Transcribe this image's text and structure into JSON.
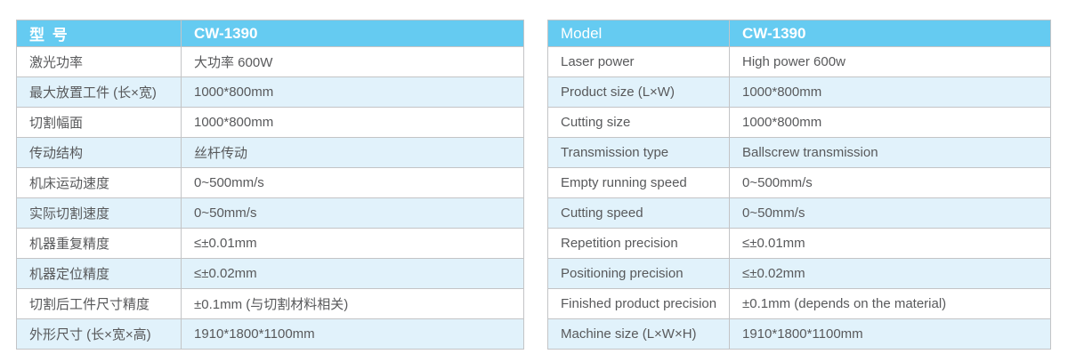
{
  "colors": {
    "header_bg": "#65cbf1",
    "header_text": "#ffffff",
    "stripe_row_bg": "#e1f2fb",
    "row_bg": "#ffffff",
    "border": "#c3c4c6",
    "body_text": "#58595b"
  },
  "tables": {
    "cn": {
      "header": {
        "label": "型 号",
        "value": "CW-1390"
      },
      "rows": [
        {
          "label": "激光功率",
          "value": "大功率 600W"
        },
        {
          "label": "最大放置工件 (长×宽)",
          "value": "1000*800mm"
        },
        {
          "label": "切割幅面",
          "value": "1000*800mm"
        },
        {
          "label": "传动结构",
          "value": "丝杆传动"
        },
        {
          "label": "机床运动速度",
          "value": "0~500mm/s"
        },
        {
          "label": "实际切割速度",
          "value": "0~50mm/s"
        },
        {
          "label": "机器重复精度",
          "value": "≤±0.01mm"
        },
        {
          "label": "机器定位精度",
          "value": "≤±0.02mm"
        },
        {
          "label": "切割后工件尺寸精度",
          "value": "±0.1mm (与切割材料相关)"
        },
        {
          "label": "外形尺寸 (长×宽×高)",
          "value": "1910*1800*1100mm"
        }
      ]
    },
    "en": {
      "header": {
        "label": "Model",
        "value": "CW-1390"
      },
      "rows": [
        {
          "label": "Laser power",
          "value": "High power 600w"
        },
        {
          "label": "Product size (L×W)",
          "value": "1000*800mm"
        },
        {
          "label": "Cutting size",
          "value": "1000*800mm"
        },
        {
          "label": "Transmission type",
          "value": "Ballscrew transmission"
        },
        {
          "label": "Empty running speed",
          "value": "0~500mm/s"
        },
        {
          "label": "Cutting speed",
          "value": "0~50mm/s"
        },
        {
          "label": "Repetition precision",
          "value": "≤±0.01mm"
        },
        {
          "label": "Positioning precision",
          "value": "≤±0.02mm"
        },
        {
          "label": "Finished product precision",
          "value": "±0.1mm (depends on the material)"
        },
        {
          "label": "Machine size (L×W×H)",
          "value": "1910*1800*1100mm"
        }
      ]
    }
  }
}
